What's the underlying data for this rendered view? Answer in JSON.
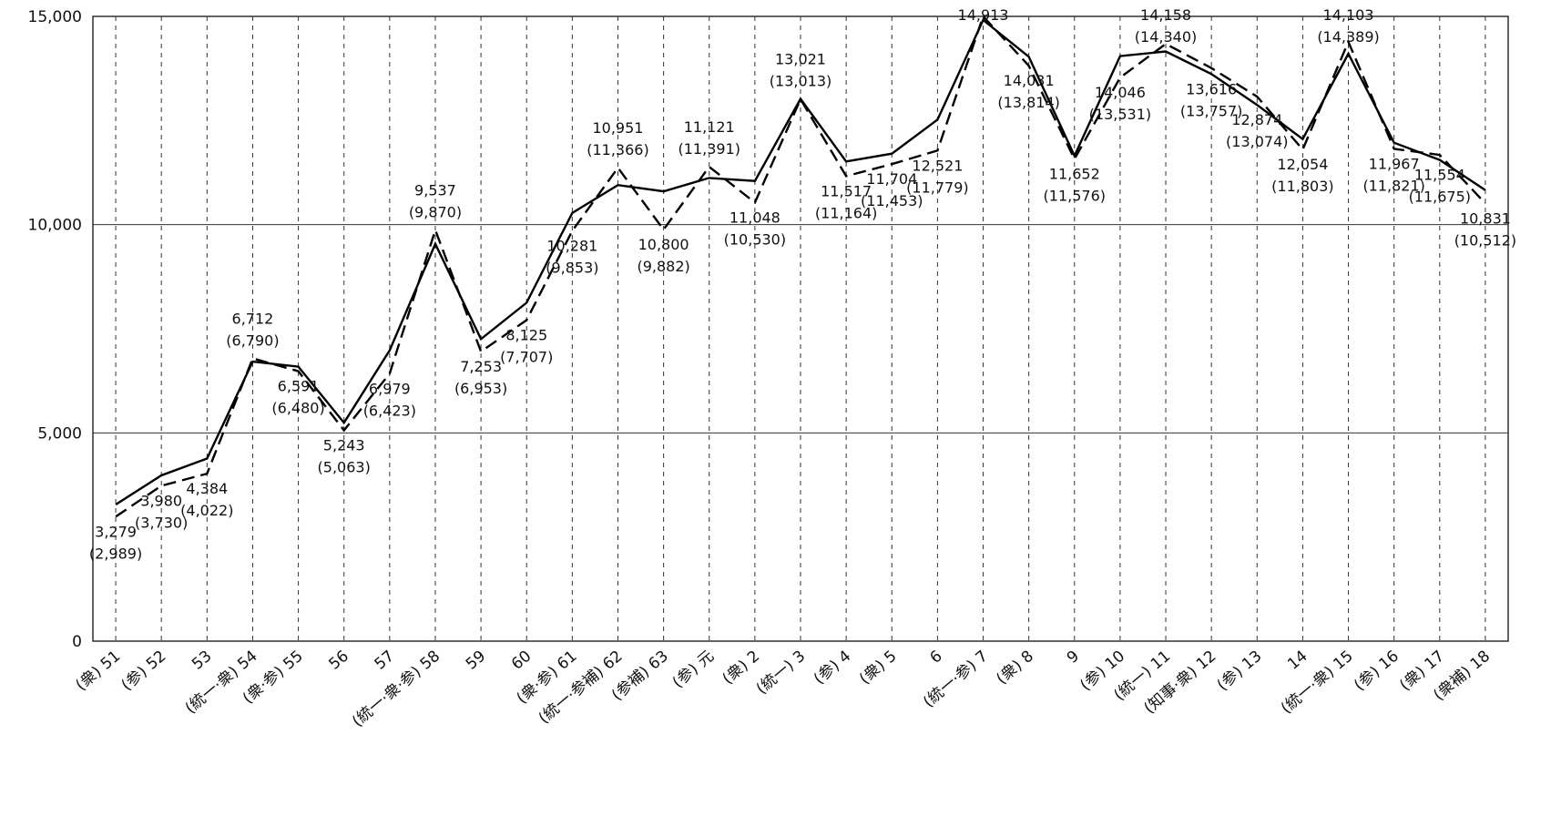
{
  "chart_data": {
    "type": "line",
    "y_ticks": [
      "15,000",
      "10,000",
      "5,000",
      "0"
    ],
    "y_tick_values": [
      15000,
      10000,
      5000,
      0
    ],
    "ylim": [
      0,
      15000
    ],
    "grid": {
      "horizontal": true,
      "vertical": "dashed"
    },
    "categories": [
      "(衆) 51",
      "(参) 52",
      "53",
      "(統一·衆) 54",
      "(衆·参) 55",
      "56",
      "57",
      "(統一·衆·参) 58",
      "59",
      "60",
      "(衆·参) 61",
      "(統一·参補) 62",
      "(参補) 63",
      "(参) 元",
      "(衆) 2",
      "(統一) 3",
      "(参) 4",
      "(衆) 5",
      "6",
      "(統一·参) 7",
      "(衆) 8",
      "9",
      "(参) 10",
      "(統一) 11",
      "(知事·衆) 12",
      "(参) 13",
      "14",
      "(統一·衆) 15",
      "(参) 16",
      "(衆) 17",
      "(衆補) 18"
    ],
    "series": [
      {
        "style": "solid",
        "values": [
          3279,
          3980,
          4384,
          6712,
          6591,
          5243,
          6979,
          9537,
          7253,
          8125,
          10281,
          10951,
          10800,
          11121,
          11048,
          13021,
          11517,
          11704,
          12521,
          14913,
          14031,
          11652,
          14046,
          14158,
          13616,
          12874,
          12054,
          14103,
          11967,
          11554,
          10831
        ],
        "labels": [
          "3,279",
          "3,980",
          "4,384",
          "6,712",
          "6,591",
          "5,243",
          "6,979",
          "9,537",
          "7,253",
          "8,125",
          "10,281",
          "10,951",
          "10,800",
          "11,121",
          "11,048",
          "13,021",
          "11,517",
          "11,704",
          "12,521",
          "14,913",
          "14,031",
          "11,652",
          "14,046",
          "14,158",
          "13,616",
          "12,874",
          "12,054",
          "14,103",
          "11,967",
          "11,554",
          "10,831"
        ]
      },
      {
        "style": "dashed",
        "values": [
          2989,
          3730,
          4022,
          6790,
          6480,
          5063,
          6423,
          9870,
          6953,
          7707,
          9853,
          11366,
          9882,
          11391,
          10530,
          13013,
          11164,
          11453,
          11779,
          15000,
          13814,
          11576,
          13531,
          14340,
          13757,
          13074,
          11803,
          14389,
          11821,
          11675,
          10512
        ],
        "labels": [
          "(2,989)",
          "(3,730)",
          "(4,022)",
          "(6,790)",
          "(6,480)",
          "(5,063)",
          "(6,423)",
          "(9,870)",
          "(6,953)",
          "(7,707)",
          "(9,853)",
          "(11,366)",
          "(9,882)",
          "(11,391)",
          "(10,530)",
          "(13,013)",
          "(11,164)",
          "(11,453)",
          "(11,779)",
          "",
          "(13,814)",
          "(11,576)",
          "(13,531)",
          "(14,340)",
          "(13,757)",
          "(13,074)",
          "(11,803)",
          "(14,389)",
          "(11,821)",
          "(11,675)",
          "(10,512)"
        ]
      }
    ]
  }
}
